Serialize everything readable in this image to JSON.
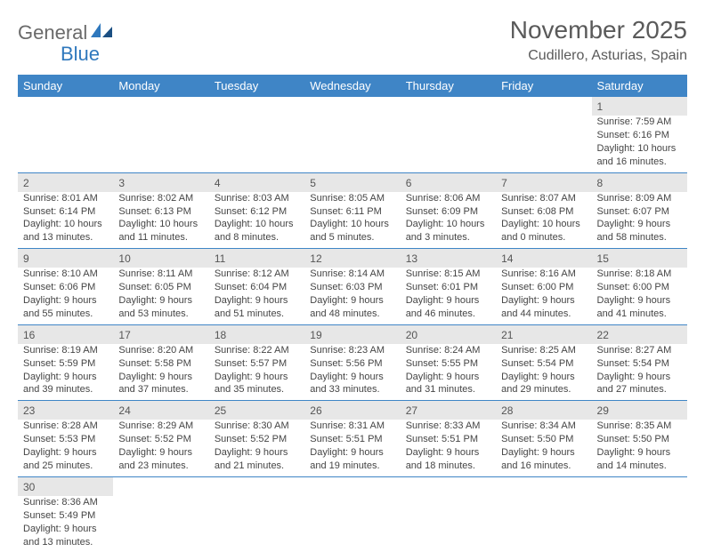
{
  "logo": {
    "text1": "General",
    "text2": "Blue"
  },
  "title": "November 2025",
  "location": "Cudillero, Asturias, Spain",
  "colors": {
    "header_bg": "#3f85c6",
    "header_text": "#ffffff",
    "daynum_bg": "#e7e7e7",
    "row_border": "#3f85c6",
    "logo_gray": "#6a6a6a",
    "logo_blue": "#2f78bd",
    "text": "#454545",
    "background": "#ffffff"
  },
  "typography": {
    "title_fontsize": 28,
    "location_fontsize": 16,
    "header_fontsize": 13,
    "daynum_fontsize": 12,
    "cell_fontsize": 11
  },
  "weekdays": [
    "Sunday",
    "Monday",
    "Tuesday",
    "Wednesday",
    "Thursday",
    "Friday",
    "Saturday"
  ],
  "labels": {
    "sunrise": "Sunrise:",
    "sunset": "Sunset:",
    "daylight": "Daylight:"
  },
  "weeks": [
    [
      null,
      null,
      null,
      null,
      null,
      null,
      {
        "n": "1",
        "sr": "7:59 AM",
        "ss": "6:16 PM",
        "dl1": "10 hours",
        "dl2": "and 16 minutes."
      }
    ],
    [
      {
        "n": "2",
        "sr": "8:01 AM",
        "ss": "6:14 PM",
        "dl1": "10 hours",
        "dl2": "and 13 minutes."
      },
      {
        "n": "3",
        "sr": "8:02 AM",
        "ss": "6:13 PM",
        "dl1": "10 hours",
        "dl2": "and 11 minutes."
      },
      {
        "n": "4",
        "sr": "8:03 AM",
        "ss": "6:12 PM",
        "dl1": "10 hours",
        "dl2": "and 8 minutes."
      },
      {
        "n": "5",
        "sr": "8:05 AM",
        "ss": "6:11 PM",
        "dl1": "10 hours",
        "dl2": "and 5 minutes."
      },
      {
        "n": "6",
        "sr": "8:06 AM",
        "ss": "6:09 PM",
        "dl1": "10 hours",
        "dl2": "and 3 minutes."
      },
      {
        "n": "7",
        "sr": "8:07 AM",
        "ss": "6:08 PM",
        "dl1": "10 hours",
        "dl2": "and 0 minutes."
      },
      {
        "n": "8",
        "sr": "8:09 AM",
        "ss": "6:07 PM",
        "dl1": "9 hours",
        "dl2": "and 58 minutes."
      }
    ],
    [
      {
        "n": "9",
        "sr": "8:10 AM",
        "ss": "6:06 PM",
        "dl1": "9 hours",
        "dl2": "and 55 minutes."
      },
      {
        "n": "10",
        "sr": "8:11 AM",
        "ss": "6:05 PM",
        "dl1": "9 hours",
        "dl2": "and 53 minutes."
      },
      {
        "n": "11",
        "sr": "8:12 AM",
        "ss": "6:04 PM",
        "dl1": "9 hours",
        "dl2": "and 51 minutes."
      },
      {
        "n": "12",
        "sr": "8:14 AM",
        "ss": "6:03 PM",
        "dl1": "9 hours",
        "dl2": "and 48 minutes."
      },
      {
        "n": "13",
        "sr": "8:15 AM",
        "ss": "6:01 PM",
        "dl1": "9 hours",
        "dl2": "and 46 minutes."
      },
      {
        "n": "14",
        "sr": "8:16 AM",
        "ss": "6:00 PM",
        "dl1": "9 hours",
        "dl2": "and 44 minutes."
      },
      {
        "n": "15",
        "sr": "8:18 AM",
        "ss": "6:00 PM",
        "dl1": "9 hours",
        "dl2": "and 41 minutes."
      }
    ],
    [
      {
        "n": "16",
        "sr": "8:19 AM",
        "ss": "5:59 PM",
        "dl1": "9 hours",
        "dl2": "and 39 minutes."
      },
      {
        "n": "17",
        "sr": "8:20 AM",
        "ss": "5:58 PM",
        "dl1": "9 hours",
        "dl2": "and 37 minutes."
      },
      {
        "n": "18",
        "sr": "8:22 AM",
        "ss": "5:57 PM",
        "dl1": "9 hours",
        "dl2": "and 35 minutes."
      },
      {
        "n": "19",
        "sr": "8:23 AM",
        "ss": "5:56 PM",
        "dl1": "9 hours",
        "dl2": "and 33 minutes."
      },
      {
        "n": "20",
        "sr": "8:24 AM",
        "ss": "5:55 PM",
        "dl1": "9 hours",
        "dl2": "and 31 minutes."
      },
      {
        "n": "21",
        "sr": "8:25 AM",
        "ss": "5:54 PM",
        "dl1": "9 hours",
        "dl2": "and 29 minutes."
      },
      {
        "n": "22",
        "sr": "8:27 AM",
        "ss": "5:54 PM",
        "dl1": "9 hours",
        "dl2": "and 27 minutes."
      }
    ],
    [
      {
        "n": "23",
        "sr": "8:28 AM",
        "ss": "5:53 PM",
        "dl1": "9 hours",
        "dl2": "and 25 minutes."
      },
      {
        "n": "24",
        "sr": "8:29 AM",
        "ss": "5:52 PM",
        "dl1": "9 hours",
        "dl2": "and 23 minutes."
      },
      {
        "n": "25",
        "sr": "8:30 AM",
        "ss": "5:52 PM",
        "dl1": "9 hours",
        "dl2": "and 21 minutes."
      },
      {
        "n": "26",
        "sr": "8:31 AM",
        "ss": "5:51 PM",
        "dl1": "9 hours",
        "dl2": "and 19 minutes."
      },
      {
        "n": "27",
        "sr": "8:33 AM",
        "ss": "5:51 PM",
        "dl1": "9 hours",
        "dl2": "and 18 minutes."
      },
      {
        "n": "28",
        "sr": "8:34 AM",
        "ss": "5:50 PM",
        "dl1": "9 hours",
        "dl2": "and 16 minutes."
      },
      {
        "n": "29",
        "sr": "8:35 AM",
        "ss": "5:50 PM",
        "dl1": "9 hours",
        "dl2": "and 14 minutes."
      }
    ],
    [
      {
        "n": "30",
        "sr": "8:36 AM",
        "ss": "5:49 PM",
        "dl1": "9 hours",
        "dl2": "and 13 minutes."
      },
      null,
      null,
      null,
      null,
      null,
      null
    ]
  ]
}
